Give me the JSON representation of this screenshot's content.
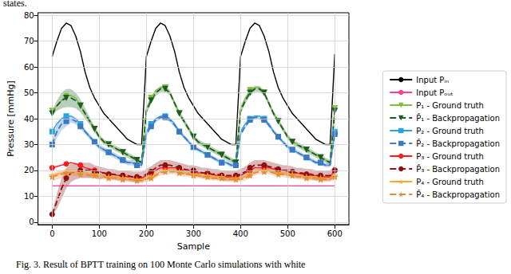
{
  "chart_data": {
    "type": "line",
    "annotations": [
      "states.",
      "Fig. 3. Result of BPTT training on 100 Monte Carlo simulations with white"
    ],
    "x_label": "Sample",
    "y_label": "Pressure [mmHg]",
    "xlim": [
      -30,
      630
    ],
    "xticks": [
      0,
      100,
      200,
      300,
      400,
      500,
      600
    ],
    "ylim": [
      -1,
      81
    ],
    "yticks": [
      0,
      10,
      20,
      30,
      40,
      50,
      60,
      70,
      80
    ],
    "grid": true,
    "legend": "right",
    "x": [
      0,
      10,
      20,
      30,
      40,
      50,
      60,
      70,
      80,
      90,
      100,
      110,
      120,
      130,
      140,
      150,
      160,
      170,
      180,
      190,
      200,
      210,
      220,
      230,
      240,
      250,
      260,
      270,
      280,
      290,
      300,
      310,
      320,
      330,
      340,
      350,
      360,
      370,
      380,
      390,
      400,
      410,
      420,
      430,
      440,
      450,
      460,
      470,
      480,
      490,
      500,
      510,
      520,
      530,
      540,
      550,
      560,
      570,
      580,
      590,
      600
    ],
    "series": [
      {
        "name": "Input Pᵢₙ",
        "color": "#000000",
        "line_style": "solid",
        "values": [
          64,
          70,
          75,
          77,
          76,
          72,
          66,
          58,
          52,
          48,
          45,
          42,
          40,
          38,
          36,
          34,
          32,
          31,
          30,
          30,
          64,
          70,
          75,
          77,
          76,
          72,
          66,
          58,
          52,
          48,
          45,
          42,
          40,
          38,
          36,
          34,
          32,
          31,
          30,
          30,
          64,
          70,
          75,
          77,
          76,
          72,
          66,
          58,
          52,
          48,
          45,
          42,
          40,
          38,
          36,
          34,
          32,
          31,
          30,
          30,
          65
        ]
      },
      {
        "name": "Input Pₒᵤₜ",
        "color": "#ff3f8f",
        "line_style": "solid",
        "values": [
          14,
          14,
          14,
          14,
          14,
          14,
          14,
          14,
          14,
          14,
          14,
          14,
          14,
          14,
          14,
          14,
          14,
          14,
          14,
          14,
          14,
          14,
          14,
          14,
          14,
          14,
          14,
          14,
          14,
          14,
          14,
          14,
          14,
          14,
          14,
          14,
          14,
          14,
          14,
          14,
          14,
          14,
          14,
          14,
          14,
          14,
          14,
          14,
          14,
          14,
          14,
          14,
          14,
          14,
          14,
          14,
          14,
          14,
          14,
          14,
          14
        ]
      },
      {
        "name": "P₁ - Ground truth",
        "color": "#7cbd3b",
        "line_style": "solid",
        "marker": "triangle-down",
        "values": [
          43,
          45,
          47,
          49,
          49,
          48,
          45,
          42,
          39,
          36,
          33,
          31,
          30,
          29,
          28,
          27,
          26,
          25,
          24,
          23,
          44,
          48,
          51,
          52,
          52,
          50,
          46,
          42,
          39,
          36,
          33,
          31,
          30,
          29,
          28,
          27,
          26,
          25,
          24,
          23,
          44,
          48,
          51,
          52,
          52,
          50,
          46,
          42,
          39,
          36,
          33,
          31,
          30,
          29,
          28,
          27,
          26,
          25,
          24,
          23,
          44
        ]
      },
      {
        "name": "P̂₁ - Backpropagation",
        "color": "#1b5e20",
        "line_style": "dashed",
        "marker": "triangle-down",
        "values": [
          42,
          45,
          47,
          48,
          48,
          47,
          45,
          42,
          39,
          36,
          33,
          31,
          30,
          29,
          28,
          27,
          26,
          25,
          24,
          23,
          43,
          47,
          50,
          51.5,
          51.5,
          50,
          46,
          42,
          39,
          36,
          33,
          31,
          30,
          29,
          28,
          27,
          26,
          25,
          24,
          23,
          43,
          47,
          50,
          51.5,
          51.5,
          50,
          46,
          42,
          39,
          36,
          33,
          31,
          30,
          29,
          28,
          27,
          26,
          25,
          24,
          23,
          43
        ],
        "error": [
          1,
          2,
          3,
          3.5,
          3.5,
          3,
          2.5,
          2,
          1.5,
          1.2,
          1,
          1,
          1,
          1,
          1,
          1,
          1,
          1,
          1,
          1,
          1.2,
          1.2,
          1.2,
          1.2,
          1.2,
          1,
          1,
          1,
          1,
          1,
          1,
          1,
          1,
          1,
          1,
          1,
          1,
          1,
          1,
          1,
          1.2,
          1.2,
          1.2,
          1.2,
          1.2,
          1,
          1,
          1,
          1,
          1,
          1,
          1,
          1,
          1,
          1,
          1,
          1,
          1,
          1,
          1,
          1.2
        ]
      },
      {
        "name": "P₂ - Ground truth",
        "color": "#29a3e6",
        "line_style": "solid",
        "marker": "square",
        "values": [
          35,
          38,
          40,
          41,
          41,
          40,
          38,
          35,
          33,
          31,
          29,
          28,
          27,
          26,
          25,
          24,
          23,
          23,
          22,
          22,
          35,
          38,
          40,
          41,
          41,
          40,
          38,
          35,
          33,
          31,
          29,
          28,
          27,
          26,
          25,
          24,
          23,
          23,
          22,
          22,
          35,
          38,
          40,
          41,
          41,
          40,
          38,
          35,
          33,
          31,
          29,
          28,
          27,
          26,
          25,
          24,
          23,
          23,
          22,
          22,
          35
        ]
      },
      {
        "name": "P̂₂ - Backpropagation",
        "color": "#3d78c2",
        "line_style": "dashed",
        "marker": "square",
        "values": [
          30,
          35,
          38,
          39,
          40,
          39,
          37,
          35,
          33,
          31,
          29,
          28,
          27,
          26,
          25,
          24,
          23,
          23,
          22,
          22,
          34,
          37,
          39.5,
          40.5,
          40.5,
          39.5,
          37.5,
          35,
          33,
          31,
          29,
          28,
          27,
          26,
          25,
          24,
          23,
          23,
          22,
          22,
          34,
          37,
          39.5,
          40.5,
          40.5,
          39.5,
          37.5,
          35,
          33,
          31,
          29,
          28,
          27,
          26,
          25,
          24,
          23,
          23,
          22,
          22,
          34
        ],
        "error": [
          2,
          2.5,
          2.5,
          2,
          1.5,
          1.2,
          1,
          1,
          1,
          1,
          1,
          1,
          1,
          1,
          1,
          1,
          1,
          1,
          1,
          1,
          0.8,
          0.8,
          0.8,
          0.8,
          0.8,
          0.8,
          0.8,
          0.8,
          0.8,
          0.8,
          0.8,
          0.8,
          0.8,
          0.8,
          0.8,
          0.8,
          0.8,
          0.8,
          0.8,
          0.8,
          0.8,
          0.8,
          0.8,
          0.8,
          0.8,
          0.8,
          0.8,
          0.8,
          0.8,
          0.8,
          0.8,
          0.8,
          0.8,
          0.8,
          0.8,
          0.8,
          0.8,
          0.8,
          0.8,
          0.8,
          0.8
        ]
      },
      {
        "name": "P₃ - Ground truth",
        "color": "#ff1a1a",
        "line_style": "solid",
        "marker": "circle",
        "values": [
          21,
          21.5,
          22,
          22.5,
          23,
          22.5,
          22,
          21,
          20.5,
          20,
          19.5,
          19,
          18.5,
          18.5,
          18,
          18,
          17.5,
          17.5,
          17,
          17,
          18,
          19,
          20,
          21,
          21,
          21,
          21,
          20.5,
          20,
          20,
          19.5,
          19,
          19,
          18.5,
          18.5,
          18,
          18,
          17.5,
          17.5,
          17.5,
          18,
          19,
          20,
          21,
          21,
          21,
          21,
          20.5,
          20,
          20,
          19.5,
          19,
          19,
          18.5,
          18.5,
          18,
          18,
          17.5,
          17.5,
          17.5,
          20
        ]
      },
      {
        "name": "P̂₃ - Backpropagation",
        "color": "#8b1010",
        "line_style": "dashed",
        "marker": "circle",
        "values": [
          3,
          8,
          13,
          17,
          19,
          19.5,
          20,
          20,
          20,
          19.5,
          19,
          19,
          18.5,
          18.5,
          18,
          18,
          18,
          17.5,
          17.5,
          17.5,
          18.5,
          19.5,
          21,
          22,
          22,
          22,
          21.5,
          21,
          20.5,
          20,
          20,
          19.5,
          19,
          19,
          18.5,
          18.5,
          18,
          18,
          18,
          18,
          18.5,
          19.5,
          21,
          22,
          22,
          22,
          21.5,
          21,
          20.5,
          20,
          20,
          19.5,
          19,
          19,
          18.5,
          18.5,
          18,
          18,
          18,
          18,
          20
        ],
        "error": [
          0.5,
          3,
          4,
          4,
          3.5,
          3,
          3,
          3,
          3,
          2.5,
          2.5,
          2,
          2,
          2,
          2,
          2,
          2,
          2,
          2,
          2,
          2,
          2,
          2,
          2,
          2,
          2,
          2,
          2,
          2,
          2,
          2,
          2,
          2,
          2,
          2,
          2,
          2,
          2,
          2,
          2,
          2,
          2,
          2,
          2,
          2,
          2,
          2,
          2,
          2,
          2,
          2,
          2,
          2,
          2,
          2,
          2,
          2,
          2,
          2,
          2,
          2
        ]
      },
      {
        "name": "P₄ - Ground truth",
        "color": "#ffa726",
        "line_style": "solid",
        "marker": "star",
        "values": [
          18,
          18.5,
          19,
          19.5,
          19.5,
          19.5,
          19,
          19,
          18.5,
          18.5,
          18,
          18,
          17.5,
          17.5,
          17,
          17,
          17,
          16.5,
          16.5,
          16.5,
          17,
          17.5,
          18.5,
          19.5,
          20,
          20,
          20,
          19.5,
          19,
          19,
          18.5,
          18.5,
          18,
          18,
          17.5,
          17.5,
          17.5,
          17,
          17,
          17,
          17,
          17.5,
          18.5,
          19.5,
          20,
          20,
          20,
          19.5,
          19,
          19,
          18.5,
          18.5,
          18,
          18,
          17.5,
          17.5,
          17.5,
          17,
          17,
          17,
          18
        ]
      },
      {
        "name": "P̂₄ - Backpropagation",
        "color": "#e08a3c",
        "line_style": "dashed",
        "marker": "star",
        "values": [
          17.5,
          18,
          18.5,
          19,
          19,
          19,
          18.5,
          18.5,
          18,
          18,
          17.5,
          17.5,
          17,
          17,
          17,
          16.5,
          16.5,
          16.5,
          16,
          16,
          16.5,
          17,
          18,
          19,
          19.5,
          19.5,
          19.5,
          19,
          18.5,
          18.5,
          18,
          18,
          17.5,
          17.5,
          17,
          17,
          17,
          16.5,
          16.5,
          16.5,
          16.5,
          17,
          18,
          19,
          19.5,
          19.5,
          19.5,
          19,
          18.5,
          18.5,
          18,
          18,
          17.5,
          17.5,
          17,
          17,
          17,
          16.5,
          16.5,
          16.5,
          17.5
        ],
        "error": [
          1.5,
          1.5,
          1.5,
          1.5,
          1.2,
          1.2,
          1.2,
          1,
          1,
          1,
          1,
          1,
          1,
          1,
          1,
          1,
          1,
          1,
          1,
          1,
          1,
          1,
          1,
          1,
          1,
          1,
          1,
          1,
          1,
          1,
          1,
          1,
          1,
          1,
          1,
          1,
          1,
          1,
          1,
          1,
          1,
          1,
          1,
          1,
          1,
          1,
          1,
          1,
          1,
          1,
          1,
          1,
          1,
          1,
          1,
          1,
          1,
          1,
          1,
          1,
          1
        ]
      }
    ]
  }
}
